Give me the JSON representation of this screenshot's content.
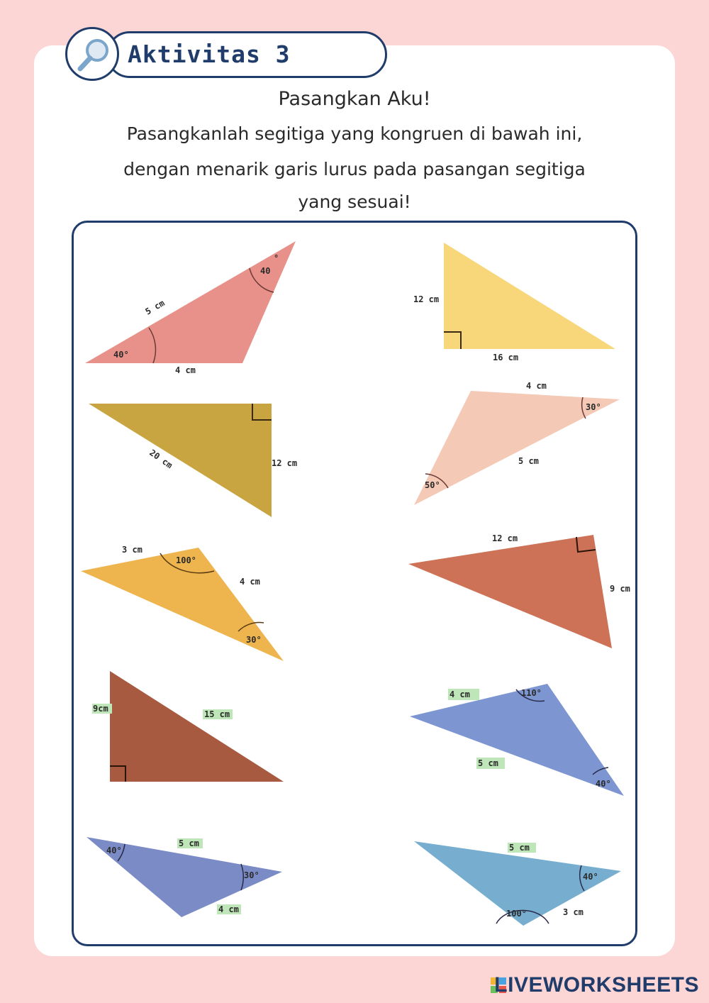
{
  "header": {
    "title": "Aktivitas 3",
    "icon": "magnifier-icon"
  },
  "subtitle": "Pasangkan Aku!",
  "instructions": [
    "Pasangkanlah segitiga yang kongruen di bawah ini,",
    "dengan menarik garis lurus pada pasangan segitiga",
    "yang sesuai!"
  ],
  "triangles_left": [
    {
      "color": "#e8918a",
      "labels": {
        "side_a": "5 cm",
        "side_b": "4 cm",
        "angle_a": "40°",
        "angle_b": "40"
      }
    },
    {
      "color": "#c9a542",
      "labels": {
        "side_a": "20 cm",
        "side_b": "12 cm"
      }
    },
    {
      "color": "#eeb54f",
      "labels": {
        "side_a": "3 cm",
        "side_b": "4 cm",
        "angle_a": "100°",
        "angle_b": "30°"
      }
    },
    {
      "color": "#a85a40",
      "labels": {
        "side_a": "9cm",
        "side_b": "15 cm"
      }
    },
    {
      "color": "#7b8bc6",
      "labels": {
        "side_a": "5 cm",
        "side_b": "4 cm",
        "angle_a": "40°",
        "angle_b": "30°"
      }
    }
  ],
  "triangles_right": [
    {
      "color": "#f7d77a",
      "labels": {
        "side_a": "12 cm",
        "side_b": "16 cm"
      }
    },
    {
      "color": "#f4c9b6",
      "labels": {
        "side_a": "4 cm",
        "side_b": "5 cm",
        "angle_a": "30°",
        "angle_b": "50°"
      }
    },
    {
      "color": "#cd7256",
      "labels": {
        "side_a": "12 cm",
        "side_b": "9 cm"
      }
    },
    {
      "color": "#7d96d2",
      "labels": {
        "side_a": "4 cm",
        "side_b": "5 cm",
        "angle_a": "110°",
        "angle_b": "40°"
      }
    },
    {
      "color": "#77aed0",
      "labels": {
        "side_a": "5 cm",
        "side_b": "3 cm",
        "angle_a": "40°",
        "angle_b": "100°"
      }
    }
  ],
  "brand": "LIVEWORKSHEETS"
}
